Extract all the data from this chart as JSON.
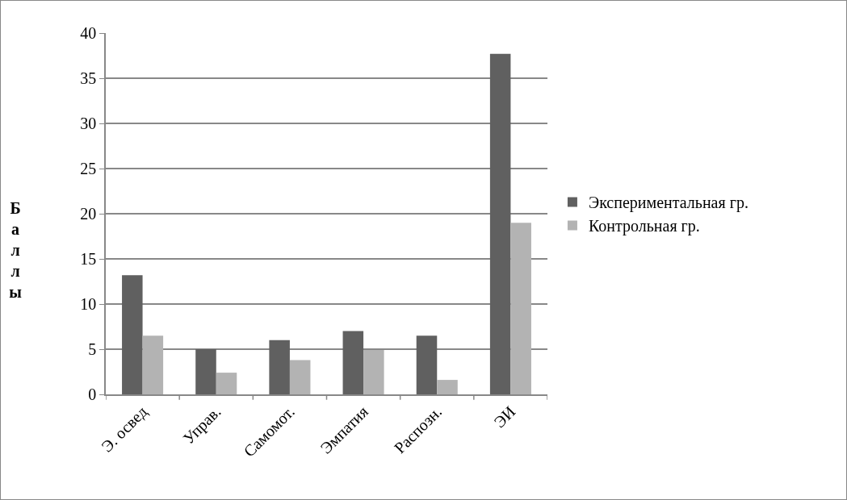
{
  "chart_data": {
    "type": "bar",
    "ylabel": "Баллы",
    "categories": [
      "Э. освед",
      "Управ.",
      "Самомот.",
      "Эмпатия",
      "Распозн.",
      "ЭИ"
    ],
    "series": [
      {
        "name": "Экспериментальная гр.",
        "color": "#606060",
        "values": [
          13.2,
          5.0,
          6.0,
          7.0,
          6.5,
          37.7
        ]
      },
      {
        "name": "Контрольная гр.",
        "color": "#b3b3b3",
        "values": [
          6.5,
          2.4,
          3.8,
          4.9,
          1.6,
          19.0
        ]
      }
    ],
    "ylim": [
      0,
      40
    ],
    "yticks": [
      0,
      5,
      10,
      15,
      20,
      25,
      30,
      35,
      40
    ],
    "grid": "y",
    "legend": "right"
  }
}
